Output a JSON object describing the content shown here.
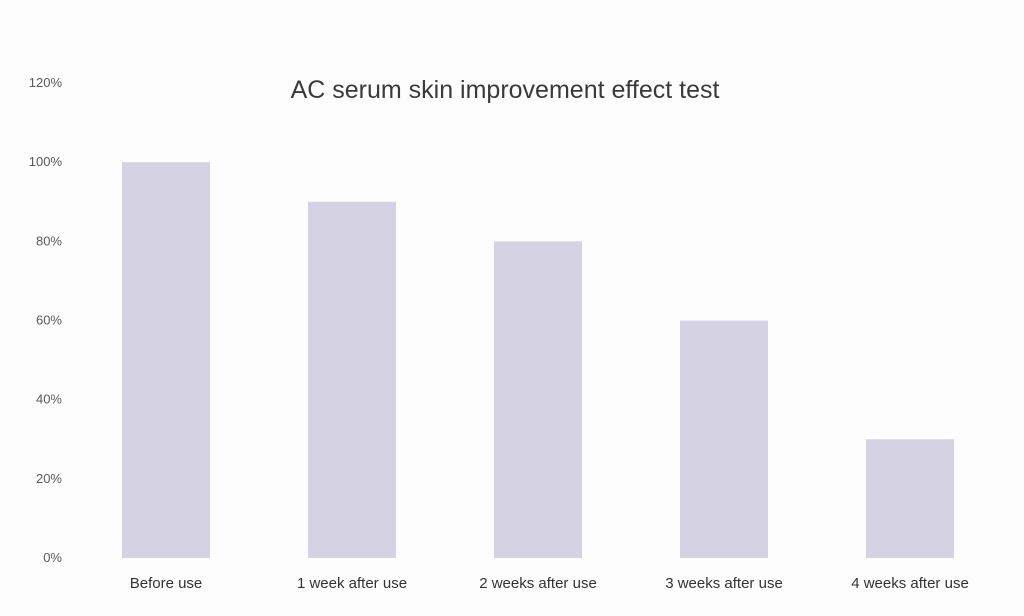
{
  "chart_data": {
    "type": "bar",
    "title": "AC serum skin improvement effect test",
    "xlabel": "",
    "ylabel": "",
    "categories": [
      "Before use",
      "1 week after use",
      "2 weeks after use",
      "3 weeks after use",
      "4 weeks after use"
    ],
    "values": [
      100,
      90,
      80,
      60,
      30
    ],
    "value_unit": "%",
    "ylim": [
      0,
      120
    ],
    "yticks": [
      "0%",
      "20%",
      "40%",
      "60%",
      "80%",
      "100%",
      "120%"
    ],
    "grid": false,
    "legend": "none",
    "bar_color": "#d5d2e4"
  }
}
